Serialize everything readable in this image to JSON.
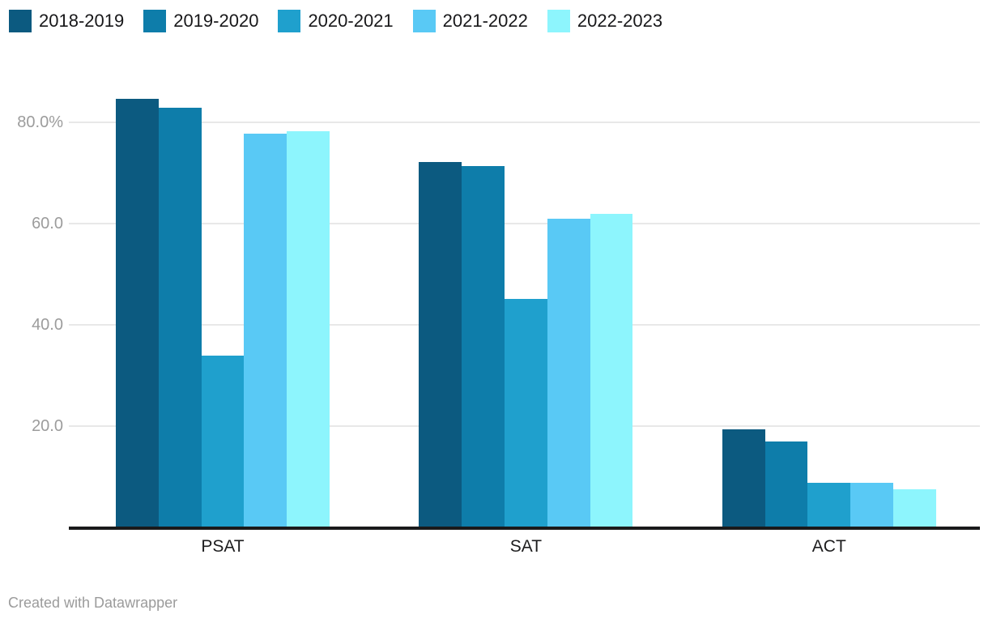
{
  "chart_data": {
    "type": "bar",
    "title": "",
    "xlabel": "",
    "ylabel": "",
    "unit": "%",
    "grid": true,
    "legend_position": "top-left",
    "categories": [
      "PSAT",
      "SAT",
      "ACT"
    ],
    "series": [
      {
        "name": "2018-2019",
        "color": "#0c5a80",
        "values": [
          84.6,
          72.1,
          19.4
        ]
      },
      {
        "name": "2019-2020",
        "color": "#0e7daa",
        "values": [
          82.9,
          71.3,
          17.0
        ]
      },
      {
        "name": "2020-2021",
        "color": "#1fa0cd",
        "values": [
          33.9,
          45.2,
          8.8
        ]
      },
      {
        "name": "2021-2022",
        "color": "#59c9f5",
        "values": [
          77.7,
          60.9,
          8.8
        ]
      },
      {
        "name": "2022-2023",
        "color": "#8df5fd",
        "values": [
          78.3,
          61.9,
          7.6
        ]
      }
    ],
    "ylim": [
      0,
      88
    ],
    "yticks": [
      {
        "value": 20,
        "label": "20.0"
      },
      {
        "value": 40,
        "label": "40.0"
      },
      {
        "value": 60,
        "label": "60.0"
      },
      {
        "value": 80,
        "label": "80.0%"
      }
    ],
    "axis_color": "#1a1a1b",
    "gridline_color": "#e8e8e8",
    "tick_label_color": "#9c9c9c",
    "category_label_color": "#1d1d1e"
  },
  "footer": {
    "credit": "Created with Datawrapper"
  }
}
